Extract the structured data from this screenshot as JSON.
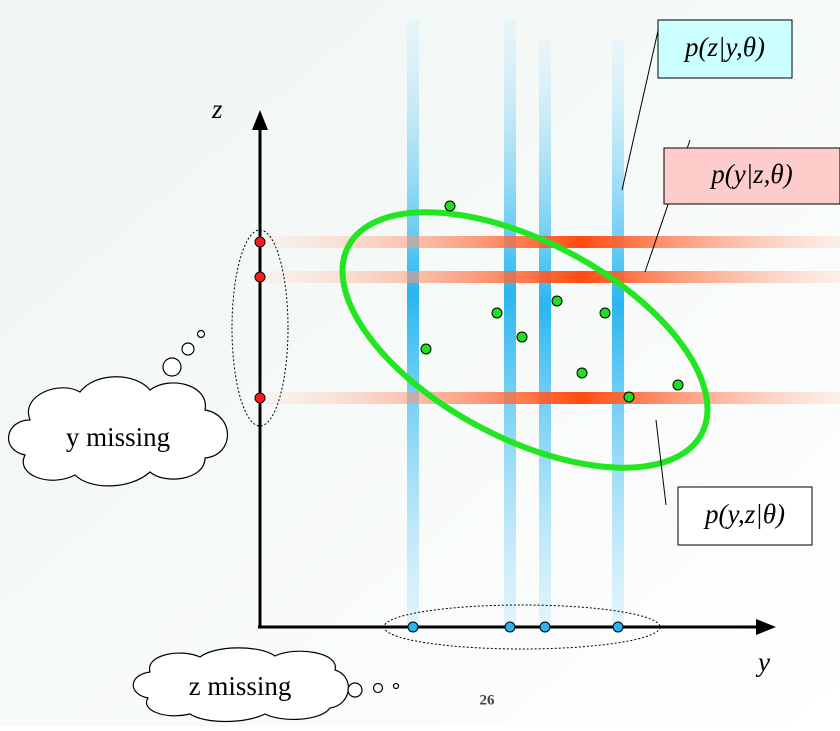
{
  "z_axis_label": "z",
  "y_axis_label": "y",
  "posterior_label": "p(z|y,θ)",
  "conditional_label": "p(y|z,θ)",
  "joint_label": "p(y,z|θ)",
  "y_missing": "y missing",
  "z_missing": "z missing",
  "page_number": "26"
}
